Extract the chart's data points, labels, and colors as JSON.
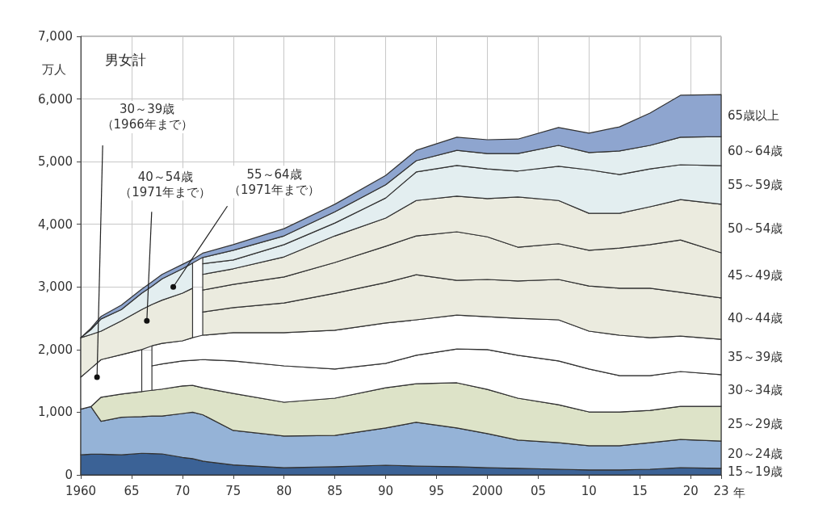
{
  "chart_data": {
    "type": "area",
    "title": "男女計",
    "xlabel": "年",
    "ylabel": "万人",
    "stacked": true,
    "grid": true,
    "x": [
      1960,
      1961,
      1962,
      1964,
      1966,
      1967,
      1968,
      1970,
      1971,
      1972,
      1975,
      1980,
      1985,
      1990,
      1993,
      1997,
      2000,
      2003,
      2007,
      2010,
      2013,
      2016,
      2019,
      2023
    ],
    "xlim": [
      1960,
      2023
    ],
    "xticks": [
      1960,
      {
        "value": 1965,
        "label": "65"
      },
      {
        "value": 1970,
        "label": "70"
      },
      {
        "value": 1975,
        "label": "75"
      },
      {
        "value": 1980,
        "label": "80"
      },
      {
        "value": 1985,
        "label": "85"
      },
      {
        "value": 1990,
        "label": "90"
      },
      {
        "value": 1995,
        "label": "95"
      },
      2000,
      {
        "value": 2005,
        "label": "05"
      },
      {
        "value": 2010,
        "label": "10"
      },
      {
        "value": 2015,
        "label": "15"
      },
      {
        "value": 2020,
        "label": "20"
      },
      {
        "value": 2023,
        "label": "23"
      }
    ],
    "ylim": [
      0,
      7000
    ],
    "yticks": [
      0,
      {
        "value": 1000,
        "label": "1,000"
      },
      {
        "value": 2000,
        "label": "2,000"
      },
      {
        "value": 3000,
        "label": "3,000"
      },
      {
        "value": 4000,
        "label": "4,000"
      },
      {
        "value": 5000,
        "label": "5,000"
      },
      {
        "value": 6000,
        "label": "6,000"
      },
      {
        "value": 7000,
        "label": "7,000"
      }
    ],
    "series": [
      {
        "name": "15～19歳",
        "color": "#3b6296",
        "values": [
          320,
          330,
          330,
          320,
          345,
          340,
          335,
          280,
          260,
          220,
          160,
          115,
          130,
          155,
          140,
          130,
          115,
          105,
          90,
          80,
          80,
          90,
          115,
          105
        ]
      },
      {
        "name": "20～24歳",
        "color": "#95b3d7",
        "values": [
          730,
          760,
          525,
          600,
          585,
          600,
          605,
          700,
          740,
          740,
          550,
          505,
          500,
          595,
          700,
          620,
          545,
          450,
          425,
          385,
          385,
          425,
          450,
          435
        ]
      },
      {
        "name": "25～29歳",
        "color": "#dde3c8",
        "values": [
          null,
          0,
          385,
          370,
          400,
          410,
          430,
          440,
          430,
          430,
          590,
          540,
          595,
          640,
          615,
          720,
          705,
          670,
          605,
          540,
          540,
          515,
          530,
          555
        ]
      },
      {
        "color": "#ffffff",
        "values": [
          510,
          610,
          600,
          630,
          670,
          null,
          null,
          null,
          null,
          null,
          null,
          null,
          null,
          null,
          null,
          null,
          null,
          null,
          null,
          null,
          null,
          null,
          null,
          null
        ]
      },
      {
        "name": "30～34歳",
        "color": "#ffffff",
        "values": [
          null,
          null,
          null,
          null,
          null,
          390,
          400,
          400,
          400,
          450,
          520,
          580,
          465,
          390,
          455,
          540,
          635,
          685,
          700,
          685,
          580,
          555,
          555,
          505
        ]
      },
      {
        "name": "35～39歳",
        "color": "#ffffff",
        "values": [
          null,
          null,
          null,
          null,
          null,
          320,
          330,
          320,
          360,
          390,
          450,
          530,
          620,
          645,
          565,
          540,
          525,
          590,
          655,
          605,
          645,
          605,
          565,
          565
        ]
      },
      {
        "color": "#ebebdf",
        "values": [
          630,
          540,
          455,
          540,
          640,
          660,
          690,
          760,
          790,
          null,
          null,
          null,
          null,
          null,
          null,
          null,
          null,
          null,
          null,
          null,
          null,
          null,
          null,
          null
        ]
      },
      {
        "name": "40～44歳",
        "color": "#ebebdf",
        "values": [
          null,
          null,
          null,
          null,
          null,
          null,
          null,
          null,
          null,
          370,
          400,
          475,
          590,
          645,
          720,
          555,
          595,
          595,
          645,
          720,
          750,
          790,
          700,
          660
        ]
      },
      {
        "name": "45～49歳",
        "color": "#ebebdf",
        "values": [
          null,
          null,
          null,
          null,
          null,
          null,
          null,
          null,
          null,
          350,
          370,
          415,
          490,
          580,
          620,
          775,
          680,
          540,
          570,
          570,
          640,
          695,
          835,
          720
        ]
      },
      {
        "name": "50～54歳",
        "color": "#ebebdf",
        "values": [
          null,
          null,
          null,
          null,
          null,
          null,
          null,
          null,
          null,
          250,
          250,
          320,
          425,
          450,
          565,
          570,
          610,
          800,
          690,
          590,
          555,
          605,
          645,
          775
        ]
      },
      {
        "color": "#e3eef0",
        "values": [
          0,
          80,
          195,
          180,
          260,
          290,
          340,
          390,
          400,
          null,
          null,
          null,
          null,
          null,
          null,
          null,
          null,
          null,
          null,
          null,
          null,
          null,
          null,
          null
        ]
      },
      {
        "name": "55～59歳",
        "color": "#e3eef0",
        "values": [
          null,
          null,
          null,
          null,
          null,
          null,
          null,
          null,
          null,
          170,
          140,
          195,
          205,
          320,
          455,
          490,
          475,
          415,
          545,
          695,
          620,
          605,
          555,
          615
        ]
      },
      {
        "name": "60～64歳",
        "color": "#e3eef0",
        "values": [
          null,
          null,
          null,
          null,
          null,
          null,
          null,
          null,
          null,
          100,
          155,
          140,
          180,
          210,
          180,
          240,
          245,
          280,
          335,
          275,
          375,
          375,
          440,
          465
        ]
      },
      {
        "name": "65歳以上",
        "color": "#8ea5cf",
        "values": [
          0,
          20,
          40,
          70,
          65,
          70,
          70,
          70,
          60,
          70,
          90,
          115,
          120,
          150,
          165,
          210,
          220,
          230,
          285,
          310,
          385,
          515,
          670,
          670
        ]
      }
    ],
    "annotations": [
      {
        "text": "30～39歳（1966年まで）",
        "x": 1961.6,
        "y": 1560
      },
      {
        "text": "40～54歳（1971年まで）",
        "x": 1966.5,
        "y": 2460
      },
      {
        "text": "55～64歳（1971年まで）",
        "x": 1969.1,
        "y": 3000
      }
    ]
  }
}
